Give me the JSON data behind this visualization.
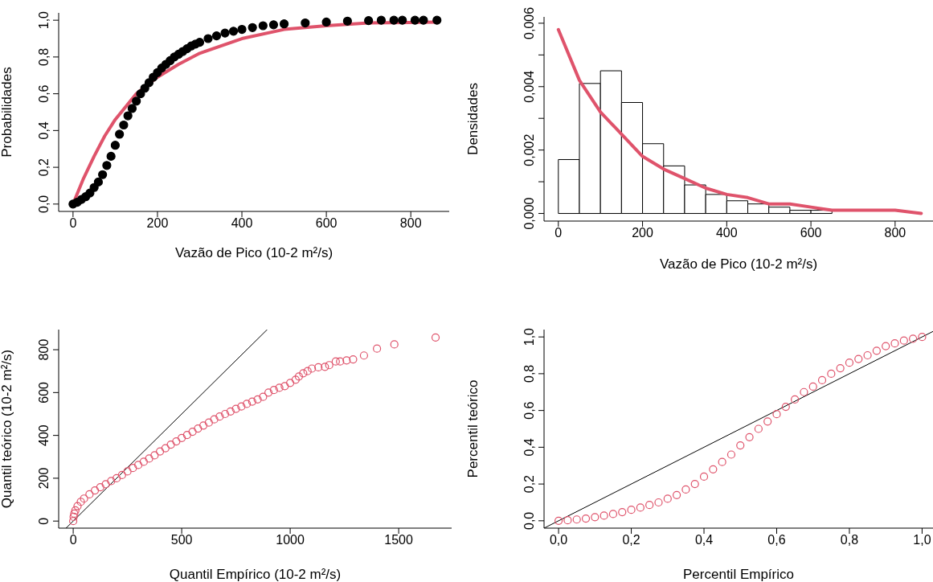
{
  "chart_data": [
    {
      "type": "line",
      "xlabel": "Vazão de Pico (10-2 m²/s)",
      "ylabel": "Probabilidades",
      "xlim": [
        -34,
        891
      ],
      "ylim": [
        -0.04,
        1.04
      ],
      "xticks": [
        0,
        200,
        400,
        600,
        800
      ],
      "yticks": [
        {
          "value": 0,
          "label": "0,0"
        },
        {
          "value": 0.2,
          "label": "0,2"
        },
        {
          "value": 0.4,
          "label": "0,4"
        },
        {
          "value": 0.6,
          "label": "0,6"
        },
        {
          "value": 0.8,
          "label": "0,8"
        },
        {
          "value": 1,
          "label": "1,0"
        }
      ],
      "series": [
        {
          "type": "scatter",
          "marker": "circle",
          "color": "#000000",
          "x": [
            0,
            10,
            20,
            30,
            40,
            50,
            60,
            70,
            80,
            90,
            100,
            110,
            120,
            130,
            140,
            150,
            160,
            170,
            180,
            190,
            200,
            210,
            220,
            230,
            240,
            250,
            260,
            270,
            280,
            290,
            300,
            320,
            340,
            360,
            380,
            400,
            425,
            450,
            475,
            500,
            550,
            600,
            650,
            700,
            730,
            760,
            780,
            810,
            830,
            862
          ],
          "values": [
            0,
            0.01,
            0.025,
            0.04,
            0.06,
            0.09,
            0.12,
            0.16,
            0.21,
            0.26,
            0.32,
            0.38,
            0.43,
            0.48,
            0.52,
            0.56,
            0.6,
            0.63,
            0.66,
            0.69,
            0.715,
            0.74,
            0.76,
            0.78,
            0.8,
            0.815,
            0.83,
            0.845,
            0.86,
            0.87,
            0.88,
            0.9,
            0.915,
            0.93,
            0.94,
            0.95,
            0.96,
            0.97,
            0.975,
            0.98,
            0.985,
            0.99,
            0.995,
            0.998,
            1,
            1,
            1,
            1,
            1,
            1
          ]
        },
        {
          "type": "line",
          "color": "#df536b",
          "x": [
            0,
            25,
            50,
            75,
            100,
            150,
            200,
            250,
            300,
            400,
            500,
            600,
            700,
            862
          ],
          "values": [
            0,
            0.14,
            0.26,
            0.37,
            0.46,
            0.6,
            0.69,
            0.76,
            0.82,
            0.9,
            0.95,
            0.97,
            0.985,
            0.99
          ]
        }
      ]
    },
    {
      "type": "histogram",
      "xlabel": "Vazão de Pico (10-2 m²/s)",
      "ylabel": "Densidades",
      "xlim": [
        -34,
        890
      ],
      "ylim": [
        -0.00024,
        0.0062
      ],
      "xticks": [
        0,
        200,
        400,
        600,
        800
      ],
      "yticks": [
        {
          "value": 0,
          "label": "0,000"
        },
        {
          "value": 0.001,
          "label": null
        },
        {
          "value": 0.002,
          "label": "0,002"
        },
        {
          "value": 0.003,
          "label": null
        },
        {
          "value": 0.004,
          "label": "0,004"
        },
        {
          "value": 0.005,
          "label": null
        },
        {
          "value": 0.006,
          "label": "0,006"
        }
      ],
      "color": "#ffffff",
      "bins": [
        0,
        50,
        100,
        150,
        200,
        250,
        300,
        350,
        400,
        450,
        500,
        550,
        600,
        650,
        700,
        750,
        800
      ],
      "values": [
        0.0017,
        0.0041,
        0.0045,
        0.0035,
        0.0022,
        0.0015,
        0.0009,
        0.0006,
        0.0004,
        0.0003,
        0.0002,
        0.0001,
        0.0001,
        0,
        0,
        0
      ],
      "series": [
        {
          "type": "line",
          "color": "#df536b",
          "x": [
            0,
            50,
            100,
            150,
            200,
            250,
            300,
            350,
            400,
            450,
            500,
            550,
            600,
            650,
            700,
            750,
            800,
            862
          ],
          "values": [
            0.0058,
            0.0042,
            0.0032,
            0.0025,
            0.0018,
            0.0014,
            0.0011,
            0.0008,
            0.0006,
            0.0005,
            0.0003,
            0.0003,
            0.0002,
            0.0001,
            0.0001,
            0.0001,
            0.0001,
            0
          ]
        }
      ]
    },
    {
      "type": "scatter",
      "xlabel": "Quantil Empírico (10-2 m²/s)",
      "ylabel": "Quantil teórico (10-2 m²/s)",
      "xlim": [
        -67,
        1744
      ],
      "ylim": [
        -33,
        894
      ],
      "xticks": [
        0,
        500,
        1000,
        1500
      ],
      "yticks": [
        0,
        200,
        400,
        600,
        800
      ],
      "series": [
        {
          "type": "scatter",
          "marker": "circle",
          "color": "#df536b",
          "x": [
            0,
            2,
            5,
            10,
            20,
            35,
            50,
            75,
            100,
            125,
            150,
            175,
            200,
            225,
            250,
            275,
            300,
            325,
            350,
            375,
            400,
            425,
            450,
            475,
            500,
            525,
            550,
            575,
            600,
            625,
            650,
            675,
            700,
            725,
            750,
            775,
            800,
            825,
            850,
            875,
            900,
            925,
            950,
            975,
            1000,
            1025,
            1040,
            1060,
            1080,
            1100,
            1130,
            1160,
            1180,
            1210,
            1230,
            1260,
            1290,
            1340,
            1400,
            1480,
            1670
          ],
          "values": [
            0,
            20,
            35,
            50,
            70,
            90,
            105,
            125,
            143,
            158,
            172,
            187,
            200,
            215,
            232,
            248,
            262,
            277,
            292,
            307,
            325,
            340,
            357,
            372,
            388,
            402,
            417,
            432,
            446,
            460,
            475,
            488,
            500,
            512,
            524,
            535,
            547,
            558,
            568,
            580,
            600,
            612,
            622,
            630,
            645,
            660,
            675,
            690,
            700,
            712,
            718,
            720,
            728,
            745,
            745,
            750,
            755,
            773,
            805,
            825,
            857
          ]
        },
        {
          "type": "line",
          "color": "#000000",
          "x": [
            -33,
            894
          ],
          "values": [
            -33,
            894
          ]
        }
      ]
    },
    {
      "type": "scatter",
      "xlabel": "Percentil Empírico",
      "ylabel": "Percentil teórico",
      "xlim": [
        -0.04,
        1.03
      ],
      "ylim": [
        -0.04,
        1.04
      ],
      "xticks": [
        {
          "value": 0,
          "label": "0,0"
        },
        {
          "value": 0.2,
          "label": "0,2"
        },
        {
          "value": 0.4,
          "label": "0,4"
        },
        {
          "value": 0.6,
          "label": "0,6"
        },
        {
          "value": 0.8,
          "label": "0,8"
        },
        {
          "value": 1,
          "label": "1,0"
        }
      ],
      "yticks": [
        {
          "value": 0,
          "label": "0,0"
        },
        {
          "value": 0.2,
          "label": "0,2"
        },
        {
          "value": 0.4,
          "label": "0,4"
        },
        {
          "value": 0.6,
          "label": "0,6"
        },
        {
          "value": 0.8,
          "label": "0,8"
        },
        {
          "value": 1,
          "label": "1,0"
        }
      ],
      "series": [
        {
          "type": "scatter",
          "marker": "circle",
          "color": "#df536b",
          "x": [
            0,
            0.025,
            0.05,
            0.075,
            0.1,
            0.125,
            0.15,
            0.175,
            0.2,
            0.225,
            0.25,
            0.275,
            0.3,
            0.325,
            0.35,
            0.375,
            0.4,
            0.425,
            0.45,
            0.475,
            0.5,
            0.525,
            0.55,
            0.575,
            0.6,
            0.625,
            0.65,
            0.675,
            0.7,
            0.725,
            0.75,
            0.775,
            0.8,
            0.825,
            0.85,
            0.875,
            0.9,
            0.925,
            0.95,
            0.975,
            1
          ],
          "values": [
            0,
            0.003,
            0.007,
            0.012,
            0.02,
            0.028,
            0.037,
            0.047,
            0.06,
            0.072,
            0.086,
            0.1,
            0.12,
            0.14,
            0.17,
            0.2,
            0.24,
            0.28,
            0.32,
            0.36,
            0.41,
            0.455,
            0.5,
            0.54,
            0.58,
            0.62,
            0.66,
            0.7,
            0.73,
            0.765,
            0.8,
            0.83,
            0.86,
            0.88,
            0.9,
            0.925,
            0.95,
            0.965,
            0.98,
            0.99,
            1
          ]
        },
        {
          "type": "line",
          "color": "#000000",
          "x": [
            -0.04,
            1.03
          ],
          "values": [
            -0.04,
            1.03
          ]
        }
      ]
    }
  ]
}
